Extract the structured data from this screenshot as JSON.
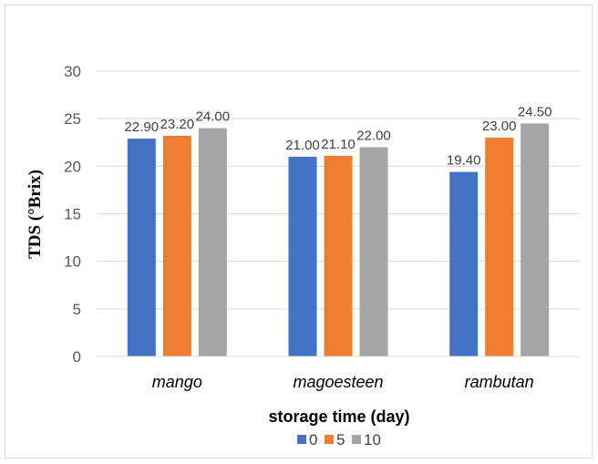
{
  "chart_data": {
    "type": "bar",
    "title": "",
    "xlabel": "storage time (day)",
    "ylabel": "TDS (°Brix)",
    "categories": [
      "mango",
      "magoesteen",
      "rambutan"
    ],
    "series": [
      {
        "name": "0",
        "color": "#4472c4",
        "values": [
          22.9,
          21.0,
          19.4
        ],
        "labels": [
          "22.90",
          "21.00",
          "19.40"
        ]
      },
      {
        "name": "5",
        "color": "#ed7d31",
        "values": [
          23.2,
          21.1,
          23.0
        ],
        "labels": [
          "23.20",
          "21.10",
          "23.00"
        ]
      },
      {
        "name": "10",
        "color": "#a5a5a5",
        "values": [
          24.0,
          22.0,
          24.5
        ],
        "labels": [
          "24.00",
          "22.00",
          "24.50"
        ]
      }
    ],
    "ylim": [
      0,
      30
    ],
    "yticks": [
      "0",
      "5",
      "10",
      "15",
      "20",
      "25",
      "30"
    ],
    "grid": true,
    "legend_position": "bottom"
  }
}
